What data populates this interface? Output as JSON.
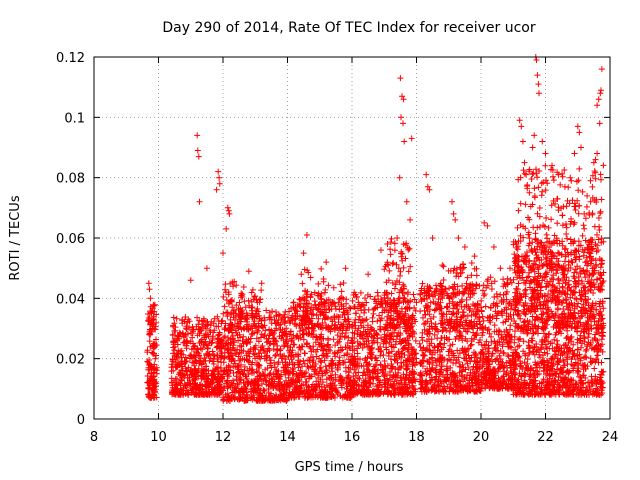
{
  "chart_data": {
    "type": "scatter",
    "title": "Day 290 of 2014, Rate Of TEC Index for receiver ucor",
    "xlabel": "GPS time / hours",
    "ylabel": "ROTI / TECUs",
    "xlim": [
      8,
      24
    ],
    "ylim": [
      0,
      0.12
    ],
    "xticks": [
      8,
      10,
      12,
      14,
      16,
      18,
      20,
      22,
      24
    ],
    "yticks": [
      0,
      0.02,
      0.04,
      0.06,
      0.08,
      0.1,
      0.12
    ],
    "ytick_labels": [
      "0",
      "0.02",
      "0.04",
      "0.06",
      "0.08",
      "0.1",
      "0.12"
    ],
    "grid": true,
    "marker": "+",
    "color": "#ff0000",
    "series": [
      {
        "name": "ROTI",
        "points": [
          [
            9.7,
            0.045
          ],
          [
            9.72,
            0.043
          ],
          [
            9.75,
            0.04
          ],
          [
            9.78,
            0.035
          ],
          [
            9.8,
            0.03
          ],
          [
            9.85,
            0.025
          ],
          [
            9.9,
            0.02
          ],
          [
            9.95,
            0.015
          ],
          [
            9.7,
            0.01
          ],
          [
            9.8,
            0.008
          ],
          [
            11.2,
            0.094
          ],
          [
            11.22,
            0.089
          ],
          [
            11.25,
            0.087
          ],
          [
            11.27,
            0.072
          ],
          [
            11.85,
            0.082
          ],
          [
            11.88,
            0.08
          ],
          [
            11.9,
            0.078
          ],
          [
            11.8,
            0.076
          ],
          [
            12.15,
            0.07
          ],
          [
            12.18,
            0.069
          ],
          [
            12.2,
            0.068
          ],
          [
            12.1,
            0.063
          ],
          [
            12.0,
            0.055
          ],
          [
            11.5,
            0.05
          ],
          [
            11.0,
            0.046
          ],
          [
            12.8,
            0.049
          ],
          [
            13.2,
            0.045
          ],
          [
            14.6,
            0.061
          ],
          [
            14.5,
            0.055
          ],
          [
            15.2,
            0.052
          ],
          [
            15.8,
            0.05
          ],
          [
            16.5,
            0.048
          ],
          [
            16.9,
            0.056
          ],
          [
            17.1,
            0.058
          ],
          [
            17.4,
            0.06
          ],
          [
            17.5,
            0.113
          ],
          [
            17.55,
            0.107
          ],
          [
            17.6,
            0.106
          ],
          [
            17.52,
            0.1
          ],
          [
            17.58,
            0.098
          ],
          [
            17.62,
            0.092
          ],
          [
            17.48,
            0.08
          ],
          [
            17.7,
            0.072
          ],
          [
            17.8,
            0.066
          ],
          [
            17.85,
            0.093
          ],
          [
            18.3,
            0.081
          ],
          [
            18.35,
            0.077
          ],
          [
            18.4,
            0.076
          ],
          [
            18.5,
            0.06
          ],
          [
            18.8,
            0.051
          ],
          [
            19.1,
            0.072
          ],
          [
            19.15,
            0.068
          ],
          [
            19.2,
            0.066
          ],
          [
            19.3,
            0.06
          ],
          [
            19.5,
            0.057
          ],
          [
            19.8,
            0.054
          ],
          [
            20.1,
            0.065
          ],
          [
            20.2,
            0.064
          ],
          [
            20.4,
            0.057
          ],
          [
            20.6,
            0.05
          ],
          [
            20.9,
            0.05
          ],
          [
            21.1,
            0.058
          ],
          [
            21.2,
            0.099
          ],
          [
            21.25,
            0.097
          ],
          [
            21.3,
            0.092
          ],
          [
            21.35,
            0.085
          ],
          [
            21.4,
            0.081
          ],
          [
            21.5,
            0.075
          ],
          [
            21.6,
            0.09
          ],
          [
            21.65,
            0.094
          ],
          [
            21.7,
            0.12
          ],
          [
            21.72,
            0.119
          ],
          [
            21.75,
            0.114
          ],
          [
            21.78,
            0.111
          ],
          [
            21.8,
            0.108
          ],
          [
            21.9,
            0.092
          ],
          [
            22.0,
            0.088
          ],
          [
            22.2,
            0.084
          ],
          [
            22.4,
            0.081
          ],
          [
            22.6,
            0.077
          ],
          [
            22.8,
            0.079
          ],
          [
            22.9,
            0.088
          ],
          [
            23.0,
            0.097
          ],
          [
            23.05,
            0.095
          ],
          [
            23.1,
            0.09
          ],
          [
            23.2,
            0.068
          ],
          [
            23.4,
            0.072
          ],
          [
            23.5,
            0.085
          ],
          [
            23.6,
            0.104
          ],
          [
            23.65,
            0.106
          ],
          [
            23.7,
            0.108
          ],
          [
            23.72,
            0.109
          ],
          [
            23.75,
            0.116
          ],
          [
            23.68,
            0.098
          ],
          [
            23.6,
            0.088
          ],
          [
            23.55,
            0.086
          ]
        ],
        "dense_bands": [
          {
            "x_range": [
              9.65,
              9.95
            ],
            "y_range": [
              0.007,
              0.038
            ],
            "count": 140
          },
          {
            "x_range": [
              10.4,
              12.0
            ],
            "y_range": [
              0.008,
              0.034
            ],
            "count": 560
          },
          {
            "x_range": [
              12.0,
              14.0
            ],
            "y_range": [
              0.006,
              0.036
            ],
            "count": 640
          },
          {
            "x_range": [
              14.0,
              16.0
            ],
            "y_range": [
              0.007,
              0.04
            ],
            "count": 640
          },
          {
            "x_range": [
              16.0,
              18.0
            ],
            "y_range": [
              0.008,
              0.042
            ],
            "count": 680
          },
          {
            "x_range": [
              18.1,
              20.0
            ],
            "y_range": [
              0.009,
              0.045
            ],
            "count": 620
          },
          {
            "x_range": [
              20.0,
              21.0
            ],
            "y_range": [
              0.01,
              0.047
            ],
            "count": 360
          },
          {
            "x_range": [
              21.0,
              23.8
            ],
            "y_range": [
              0.008,
              0.06
            ],
            "count": 1200
          },
          {
            "x_range": [
              12.0,
              13.2
            ],
            "y_range": [
              0.03,
              0.046
            ],
            "count": 90
          },
          {
            "x_range": [
              14.4,
              15.8
            ],
            "y_range": [
              0.03,
              0.05
            ],
            "count": 90
          },
          {
            "x_range": [
              17.0,
              17.9
            ],
            "y_range": [
              0.03,
              0.06
            ],
            "count": 120
          },
          {
            "x_range": [
              18.8,
              19.9
            ],
            "y_range": [
              0.03,
              0.052
            ],
            "count": 100
          },
          {
            "x_range": [
              21.1,
              23.8
            ],
            "y_range": [
              0.03,
              0.085
            ],
            "count": 420
          }
        ]
      }
    ]
  }
}
